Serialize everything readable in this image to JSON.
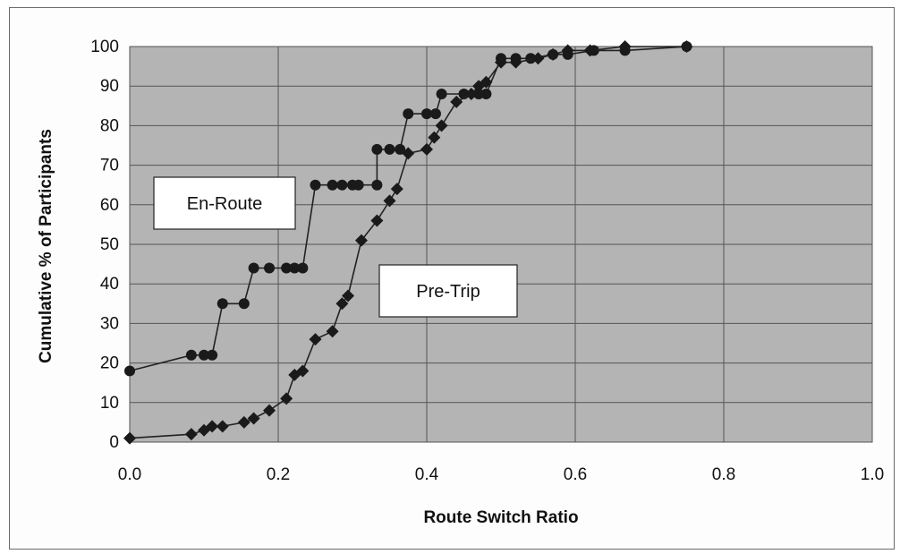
{
  "chart_data": {
    "type": "line",
    "title": "",
    "xlabel": "Route Switch Ratio",
    "ylabel": "Cumulative % of Participants",
    "xlim": [
      0.0,
      1.0
    ],
    "ylim": [
      0,
      100
    ],
    "x_ticks": [
      "0.0",
      "0.2",
      "0.4",
      "0.6",
      "0.8",
      "1.0"
    ],
    "y_ticks": [
      "0",
      "10",
      "20",
      "30",
      "40",
      "50",
      "60",
      "70",
      "80",
      "90",
      "100"
    ],
    "grid": true,
    "legend": "none",
    "annotations": [
      "En-Route",
      "Pre-Trip"
    ],
    "colors": {
      "plot_background": "#b4b4b4",
      "line": "#222222",
      "marker": "#1a1a1a",
      "grid": "#555555"
    },
    "series": [
      {
        "name": "En-Route",
        "marker": "circle",
        "points": [
          [
            0.0,
            18
          ],
          [
            0.083,
            22
          ],
          [
            0.1,
            22
          ],
          [
            0.111,
            22
          ],
          [
            0.125,
            35
          ],
          [
            0.154,
            35
          ],
          [
            0.167,
            44
          ],
          [
            0.188,
            44
          ],
          [
            0.211,
            44
          ],
          [
            0.222,
            44
          ],
          [
            0.233,
            44
          ],
          [
            0.25,
            65
          ],
          [
            0.273,
            65
          ],
          [
            0.286,
            65
          ],
          [
            0.3,
            65
          ],
          [
            0.308,
            65
          ],
          [
            0.333,
            65
          ],
          [
            0.333,
            74
          ],
          [
            0.35,
            74
          ],
          [
            0.364,
            74
          ],
          [
            0.375,
            83
          ],
          [
            0.4,
            83
          ],
          [
            0.412,
            83
          ],
          [
            0.42,
            88
          ],
          [
            0.45,
            88
          ],
          [
            0.47,
            88
          ],
          [
            0.48,
            88
          ],
          [
            0.5,
            97
          ],
          [
            0.52,
            97
          ],
          [
            0.54,
            97
          ],
          [
            0.57,
            98
          ],
          [
            0.59,
            98
          ],
          [
            0.625,
            99
          ],
          [
            0.667,
            99
          ],
          [
            0.75,
            100
          ]
        ]
      },
      {
        "name": "Pre-Trip",
        "marker": "diamond",
        "points": [
          [
            0.0,
            1
          ],
          [
            0.083,
            2
          ],
          [
            0.1,
            3
          ],
          [
            0.111,
            4
          ],
          [
            0.125,
            4
          ],
          [
            0.154,
            5
          ],
          [
            0.167,
            6
          ],
          [
            0.188,
            8
          ],
          [
            0.211,
            11
          ],
          [
            0.222,
            17
          ],
          [
            0.233,
            18
          ],
          [
            0.25,
            26
          ],
          [
            0.273,
            28
          ],
          [
            0.286,
            35
          ],
          [
            0.294,
            37
          ],
          [
            0.312,
            51
          ],
          [
            0.333,
            56
          ],
          [
            0.35,
            61
          ],
          [
            0.36,
            64
          ],
          [
            0.375,
            73
          ],
          [
            0.4,
            74
          ],
          [
            0.41,
            77
          ],
          [
            0.42,
            80
          ],
          [
            0.44,
            86
          ],
          [
            0.46,
            88
          ],
          [
            0.47,
            90
          ],
          [
            0.48,
            91
          ],
          [
            0.5,
            96
          ],
          [
            0.52,
            96
          ],
          [
            0.55,
            97
          ],
          [
            0.57,
            98
          ],
          [
            0.59,
            99
          ],
          [
            0.62,
            99
          ],
          [
            0.667,
            100
          ],
          [
            0.75,
            100
          ]
        ]
      }
    ]
  }
}
